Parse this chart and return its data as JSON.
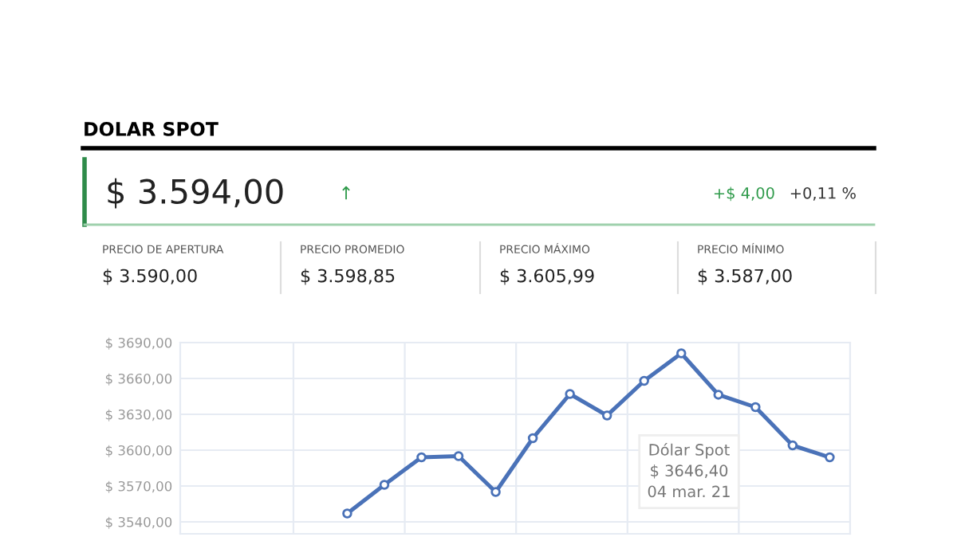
{
  "chart_data": {
    "type": "line",
    "title": "DOLAR SPOT",
    "annotations": [
      "$ 3.594,00",
      "↑",
      "+$ 4,00",
      "+0,11 %",
      "PRECIO DE APERTURA",
      "$ 3.590,00",
      "PRECIO PROMEDIO",
      "$ 3.598,85",
      "PRECIO MÁXIMO",
      "$ 3.605,99",
      "PRECIO MÍNIMO",
      "$ 3.587,00",
      "Dólar Spot\n$ 3646,40\n04 mar. 21"
    ],
    "categories": [
      null,
      null,
      null,
      null,
      null,
      null,
      null,
      null,
      null,
      null,
      null,
      null,
      null,
      null,
      null,
      null,
      null,
      null
    ],
    "series": [
      {
        "color": "#4a72b8",
        "values": [
          null,
          null,
          null,
          null,
          3547,
          3571,
          3594,
          3595,
          3565,
          3610,
          3647,
          3629,
          3658,
          3681,
          3646.4,
          3636,
          3604,
          3594
        ]
      }
    ],
    "ylim": [
      3530,
      3690
    ],
    "yticks": [
      {
        "value": 3540,
        "label": "$ 3540,00"
      },
      {
        "value": 3570,
        "label": "$ 3570,00"
      },
      {
        "value": 3600,
        "label": "$ 3600,00"
      },
      {
        "value": 3630,
        "label": "$ 3630,00"
      },
      {
        "value": 3660,
        "label": "$ 3660,00"
      },
      {
        "value": 3690,
        "label": "$ 3690,00"
      }
    ],
    "grid": true,
    "tick_labels": "y",
    "marker": "circle",
    "line_style": "solid"
  }
}
